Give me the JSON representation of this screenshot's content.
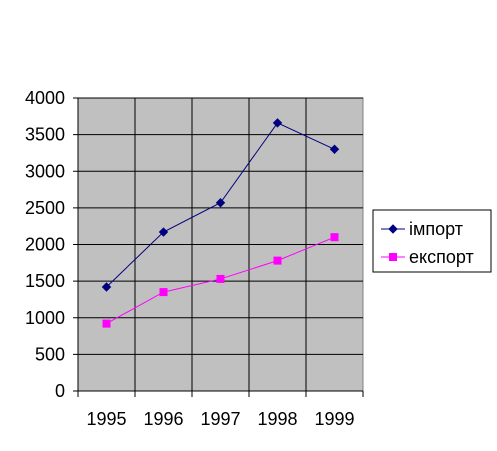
{
  "chart_data": {
    "type": "line",
    "title": "",
    "xlabel": "",
    "ylabel": "",
    "categories": [
      "1995",
      "1996",
      "1997",
      "1998",
      "1999"
    ],
    "ylim": [
      0,
      4000
    ],
    "yticks": [
      "0",
      "500",
      "1000",
      "1500",
      "2000",
      "2500",
      "3000",
      "3500",
      "4000"
    ],
    "grid": true,
    "plot_background": "#c0c0c0",
    "legend_position": "right",
    "series": [
      {
        "name": "імпорт",
        "values": [
          1420,
          2170,
          2570,
          3660,
          3300
        ],
        "color": "#000080",
        "marker": "diamond"
      },
      {
        "name": "експорт",
        "values": [
          920,
          1350,
          1530,
          1780,
          2100
        ],
        "color": "#ff00ff",
        "marker": "square"
      }
    ]
  }
}
